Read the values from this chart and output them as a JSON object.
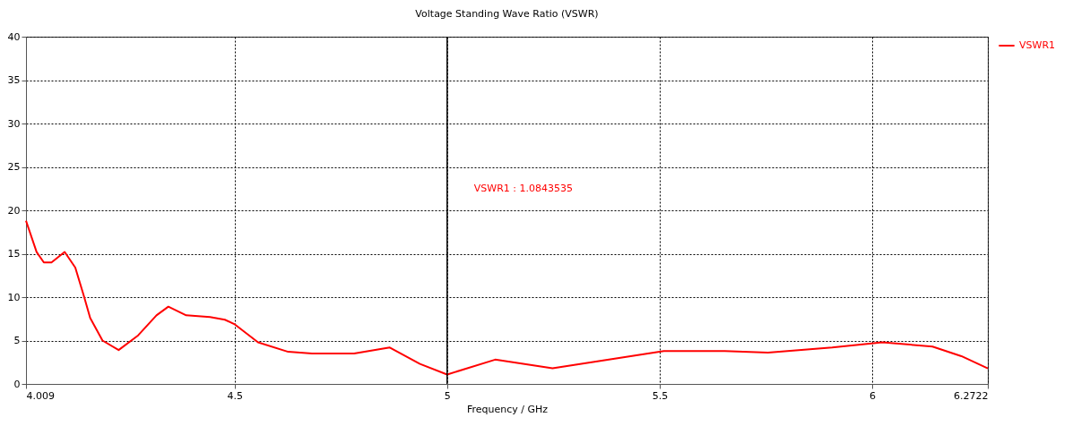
{
  "chart_data": {
    "type": "line",
    "title": "Voltage Standing Wave Ratio (VSWR)",
    "xlabel": "Frequency / GHz",
    "x": [
      4.009,
      4.034,
      4.051,
      4.069,
      4.1,
      4.125,
      4.146,
      4.16,
      4.189,
      4.227,
      4.273,
      4.316,
      4.344,
      4.386,
      4.442,
      4.477,
      4.499,
      4.555,
      4.626,
      4.682,
      4.781,
      4.865,
      4.936,
      5.0,
      5.113,
      5.248,
      5.51,
      5.653,
      5.755,
      5.906,
      6.024,
      6.142,
      6.21,
      6.2722
    ],
    "series": [
      {
        "name": "VSWR1",
        "color": "#ff0000",
        "values": [
          18.8,
          15.2,
          14.0,
          14.0,
          15.2,
          13.4,
          10.0,
          7.6,
          5.0,
          3.9,
          5.6,
          7.9,
          8.9,
          7.9,
          7.7,
          7.4,
          6.9,
          4.8,
          3.7,
          3.5,
          3.5,
          4.2,
          2.3,
          1.08,
          2.8,
          1.8,
          3.8,
          3.8,
          3.6,
          4.2,
          4.8,
          4.3,
          3.2,
          1.8
        ]
      }
    ],
    "xlim": [
      4.009,
      6.2722
    ],
    "xticks": [
      4.009,
      4.5,
      5,
      5.5,
      6,
      6.2722
    ],
    "ylim": [
      0,
      40
    ],
    "yticks": [
      0,
      5,
      10,
      15,
      20,
      25,
      30,
      35,
      40
    ],
    "grid": true,
    "legend": "top right",
    "marker": "none",
    "line_style": "solid",
    "ref_lines": [
      {
        "axis": "x",
        "value": 5,
        "color": "#000000",
        "line_style": "solid"
      }
    ],
    "annotations": [
      "VSWR1 : 1.0843535"
    ]
  }
}
